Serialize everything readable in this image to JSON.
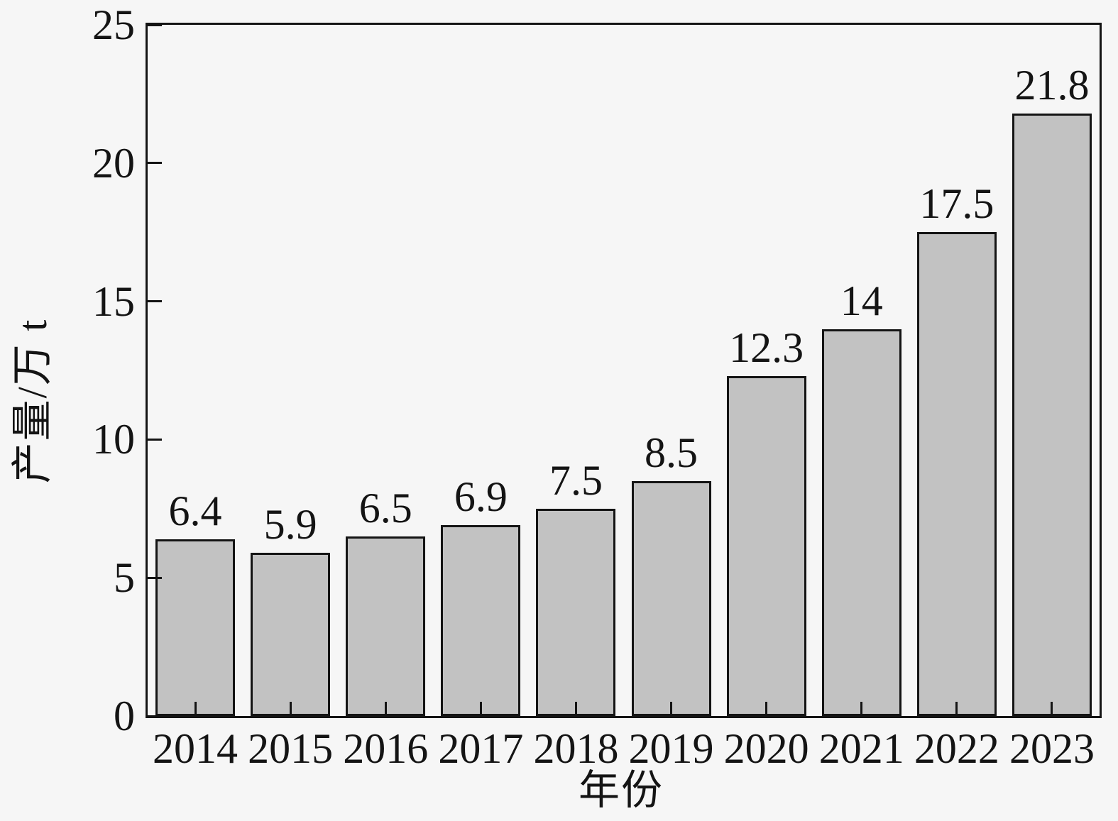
{
  "chart_data": {
    "type": "bar",
    "title": "",
    "xlabel": "年份",
    "ylabel": "产量/万 t",
    "categories": [
      "2014",
      "2015",
      "2016",
      "2017",
      "2018",
      "2019",
      "2020",
      "2021",
      "2022",
      "2023"
    ],
    "values": [
      6.4,
      5.9,
      6.5,
      6.9,
      7.5,
      8.5,
      12.3,
      14,
      17.5,
      21.8
    ],
    "value_labels": [
      "6.4",
      "5.9",
      "6.5",
      "6.9",
      "7.5",
      "8.5",
      "12.3",
      "14",
      "17.5",
      "21.8"
    ],
    "ylim": [
      0,
      25
    ],
    "yticks": [
      0,
      5,
      10,
      15,
      20,
      25
    ],
    "grid": false,
    "legend": null,
    "frame": "full-box",
    "tick_direction": "in",
    "bar_fill_color": "#c2c2c2",
    "bar_border_color": "#141414",
    "axis_color": "#141414",
    "text_color": "#141414",
    "background_color": "#f6f6f6"
  }
}
